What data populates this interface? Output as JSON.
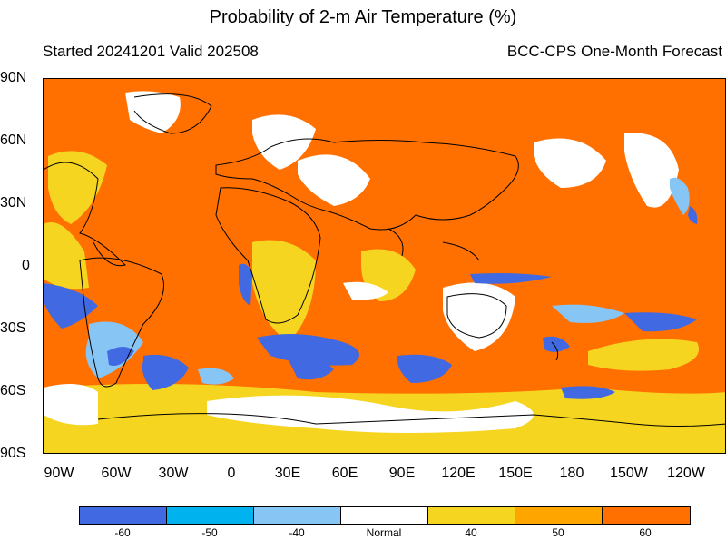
{
  "header": {
    "title": "Probability of 2-m Air Temperature (%)",
    "started": "Started 20241201  Valid 202508",
    "source": "BCC-CPS One-Month Forecast"
  },
  "axes": {
    "lat_ticks": [
      "90N",
      "60N",
      "30N",
      "0",
      "30S",
      "60S",
      "90S"
    ],
    "lon_ticks": [
      "90W",
      "60W",
      "30W",
      "0",
      "30E",
      "60E",
      "90E",
      "120E",
      "150E",
      "180",
      "150W",
      "120W"
    ]
  },
  "legend": {
    "labels": [
      "-60",
      "-50",
      "-40",
      "Normal",
      "40",
      "50",
      "60"
    ],
    "colors": [
      "#4169e1",
      "#00b2ee",
      "#87c5f5",
      "#ffffff",
      "#f5d520",
      "#ffa500",
      "#ff7000"
    ]
  },
  "map": {
    "background_color": "#ff7000",
    "coastline_color": "#000000"
  }
}
